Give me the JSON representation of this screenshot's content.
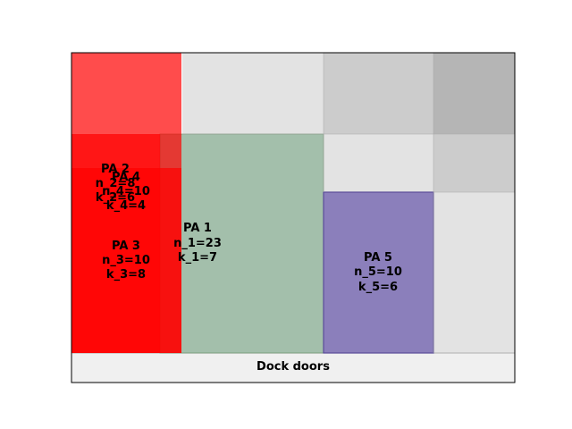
{
  "dock": {
    "label": "Dock doors",
    "color": "#f0f0f0"
  },
  "grid_colors": {
    "light": "#e3e3e3",
    "medium": "#cccccc",
    "dark": "#b5b5b5"
  },
  "areas": [
    {
      "id": "pa2",
      "name": "PA 2",
      "n": "n_2=8",
      "k": "k_2=6",
      "color": "#ff0000",
      "alpha": 0.7
    },
    {
      "id": "pa4",
      "name": "PA 4",
      "n": "n_4=10",
      "k": "k_4=4",
      "color": "#ff0000",
      "alpha": 0.7
    },
    {
      "id": "pa1",
      "name": "PA 1",
      "n": "n_1=23",
      "k": "k_1=7",
      "color": "#a3bfab",
      "alpha": 1
    },
    {
      "id": "pa3",
      "name": "PA 3",
      "n": "n_3=10",
      "k": "k_3=8",
      "color": "#ff0000",
      "alpha": 0.7
    },
    {
      "id": "pa5",
      "name": "PA 5",
      "n": "n_5=10",
      "k": "k_5=6",
      "color": "#8b7fbb",
      "alpha": 1
    }
  ]
}
